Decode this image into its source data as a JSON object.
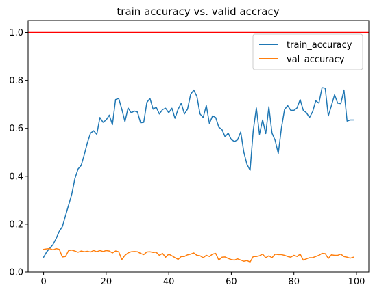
{
  "chart_data": {
    "type": "line",
    "title": "train accuracy vs. valid accracy",
    "xlabel": "",
    "ylabel": "",
    "xlim": [
      -4.95,
      103.95
    ],
    "ylim": [
      0.0,
      1.05
    ],
    "xticks": [
      0,
      20,
      40,
      60,
      80,
      100
    ],
    "yticks": [
      0.0,
      0.2,
      0.4,
      0.6,
      0.8,
      1.0
    ],
    "xtick_labels": [
      "0",
      "20",
      "40",
      "60",
      "80",
      "100"
    ],
    "ytick_labels": [
      "0.0",
      "0.2",
      "0.4",
      "0.6",
      "0.8",
      "1.0"
    ],
    "grid": false,
    "legend_position": "top-right",
    "reference_line": {
      "y": 1.0,
      "color": "#ff0000"
    },
    "series": [
      {
        "name": "train_accuracy",
        "color": "#1f77b4",
        "x": [
          0,
          1,
          2,
          3,
          4,
          5,
          6,
          7,
          8,
          9,
          10,
          11,
          12,
          13,
          14,
          15,
          16,
          17,
          18,
          19,
          20,
          21,
          22,
          23,
          24,
          25,
          26,
          27,
          28,
          29,
          30,
          31,
          32,
          33,
          34,
          35,
          36,
          37,
          38,
          39,
          40,
          41,
          42,
          43,
          44,
          45,
          46,
          47,
          48,
          49,
          50,
          51,
          52,
          53,
          54,
          55,
          56,
          57,
          58,
          59,
          60,
          61,
          62,
          63,
          64,
          65,
          66,
          67,
          68,
          69,
          70,
          71,
          72,
          73,
          74,
          75,
          76,
          77,
          78,
          79,
          80,
          81,
          82,
          83,
          84,
          85,
          86,
          87,
          88,
          89,
          90,
          91,
          92,
          93,
          94,
          95,
          96,
          97,
          98,
          99
        ],
        "values": [
          0.062,
          0.085,
          0.1,
          0.115,
          0.14,
          0.17,
          0.19,
          0.235,
          0.28,
          0.325,
          0.39,
          0.43,
          0.445,
          0.49,
          0.54,
          0.58,
          0.59,
          0.575,
          0.645,
          0.625,
          0.635,
          0.655,
          0.615,
          0.72,
          0.725,
          0.68,
          0.628,
          0.685,
          0.665,
          0.672,
          0.668,
          0.623,
          0.625,
          0.708,
          0.725,
          0.68,
          0.688,
          0.66,
          0.678,
          0.684,
          0.665,
          0.684,
          0.642,
          0.68,
          0.705,
          0.66,
          0.68,
          0.742,
          0.76,
          0.733,
          0.66,
          0.645,
          0.695,
          0.62,
          0.652,
          0.645,
          0.605,
          0.595,
          0.565,
          0.58,
          0.553,
          0.545,
          0.552,
          0.585,
          0.5,
          0.45,
          0.425,
          0.59,
          0.685,
          0.575,
          0.635,
          0.578,
          0.69,
          0.58,
          0.55,
          0.495,
          0.6,
          0.678,
          0.695,
          0.675,
          0.675,
          0.685,
          0.72,
          0.675,
          0.665,
          0.645,
          0.67,
          0.715,
          0.705,
          0.77,
          0.768,
          0.652,
          0.695,
          0.74,
          0.705,
          0.703,
          0.76,
          0.63,
          0.635,
          0.635
        ]
      },
      {
        "name": "val_accuracy",
        "color": "#ff7f0e",
        "x": [
          0,
          1,
          2,
          3,
          4,
          5,
          6,
          7,
          8,
          9,
          10,
          11,
          12,
          13,
          14,
          15,
          16,
          17,
          18,
          19,
          20,
          21,
          22,
          23,
          24,
          25,
          26,
          27,
          28,
          29,
          30,
          31,
          32,
          33,
          34,
          35,
          36,
          37,
          38,
          39,
          40,
          41,
          42,
          43,
          44,
          45,
          46,
          47,
          48,
          49,
          50,
          51,
          52,
          53,
          54,
          55,
          56,
          57,
          58,
          59,
          60,
          61,
          62,
          63,
          64,
          65,
          66,
          67,
          68,
          69,
          70,
          71,
          72,
          73,
          74,
          75,
          76,
          77,
          78,
          79,
          80,
          81,
          82,
          83,
          84,
          85,
          86,
          87,
          88,
          89,
          90,
          91,
          92,
          93,
          94,
          95,
          96,
          97,
          98,
          99
        ],
        "values": [
          0.095,
          0.097,
          0.098,
          0.093,
          0.098,
          0.095,
          0.063,
          0.065,
          0.09,
          0.092,
          0.088,
          0.083,
          0.088,
          0.085,
          0.087,
          0.084,
          0.09,
          0.085,
          0.09,
          0.086,
          0.09,
          0.088,
          0.08,
          0.088,
          0.085,
          0.052,
          0.07,
          0.08,
          0.085,
          0.086,
          0.085,
          0.078,
          0.073,
          0.084,
          0.085,
          0.082,
          0.083,
          0.07,
          0.078,
          0.062,
          0.075,
          0.068,
          0.06,
          0.053,
          0.065,
          0.065,
          0.072,
          0.075,
          0.08,
          0.07,
          0.068,
          0.06,
          0.07,
          0.065,
          0.075,
          0.078,
          0.05,
          0.062,
          0.063,
          0.057,
          0.052,
          0.05,
          0.055,
          0.05,
          0.045,
          0.048,
          0.042,
          0.065,
          0.065,
          0.068,
          0.075,
          0.06,
          0.068,
          0.06,
          0.075,
          0.073,
          0.073,
          0.07,
          0.065,
          0.062,
          0.07,
          0.065,
          0.075,
          0.05,
          0.055,
          0.06,
          0.06,
          0.065,
          0.07,
          0.078,
          0.077,
          0.057,
          0.072,
          0.07,
          0.07,
          0.075,
          0.065,
          0.062,
          0.058,
          0.062
        ]
      }
    ]
  }
}
